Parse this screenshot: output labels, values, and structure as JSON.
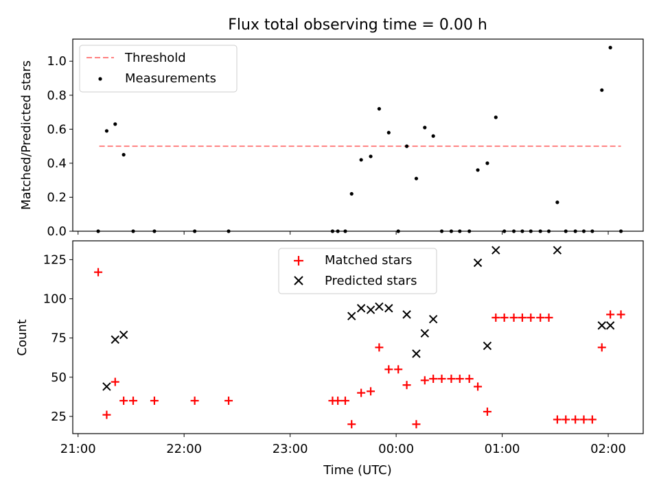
{
  "title": "Flux total observing time = 0.00 h",
  "colors": {
    "threshold": "#ff7f7f",
    "measurements": "#000000",
    "matched": "#ff0000",
    "predicted": "#000000"
  },
  "x_tick_labels": [
    "21:00",
    "22:00",
    "23:00",
    "00:00",
    "01:00",
    "02:00"
  ],
  "chart_data": [
    {
      "type": "scatter",
      "ylabel": "Matched/Predicted stars",
      "xlim_hours": [
        20.95,
        26.33
      ],
      "ylim": [
        0,
        1.13
      ],
      "y_ticks": [
        0.0,
        0.2,
        0.4,
        0.6,
        0.8,
        1.0
      ],
      "y_tick_labels": [
        "0.0",
        "0.2",
        "0.4",
        "0.6",
        "0.8",
        "1.0"
      ],
      "legend": {
        "position": "upper-left",
        "entries": [
          "Threshold",
          "Measurements"
        ]
      },
      "threshold": {
        "name": "Threshold",
        "y": 0.5,
        "x": [
          21.2,
          26.12
        ]
      },
      "series": [
        {
          "name": "Measurements",
          "marker": "dot",
          "x": [
            21.19,
            21.27,
            21.35,
            21.43,
            21.52,
            21.72,
            22.1,
            22.42,
            23.4,
            23.45,
            23.52,
            23.58,
            23.67,
            23.76,
            23.84,
            23.93,
            24.02,
            24.1,
            24.19,
            24.27,
            24.35,
            24.43,
            24.52,
            24.6,
            24.69,
            24.77,
            24.86,
            24.94,
            25.02,
            25.11,
            25.19,
            25.27,
            25.36,
            25.44,
            25.52,
            25.6,
            25.69,
            25.77,
            25.85,
            25.94,
            26.02,
            26.12
          ],
          "y": [
            0.0,
            0.59,
            0.63,
            0.45,
            0.0,
            0.0,
            0.0,
            0.0,
            0.0,
            0.0,
            0.0,
            0.22,
            0.42,
            0.44,
            0.72,
            0.58,
            0.0,
            0.5,
            0.31,
            0.61,
            0.56,
            0.0,
            0.0,
            0.0,
            0.0,
            0.36,
            0.4,
            0.67,
            0.0,
            0.0,
            0.0,
            0.0,
            0.0,
            0.0,
            0.17,
            0.0,
            0.0,
            0.0,
            0.0,
            0.83,
            1.08,
            0.0
          ]
        }
      ]
    },
    {
      "type": "scatter",
      "ylabel": "Count",
      "xlabel": "Time (UTC)",
      "xlim_hours": [
        20.95,
        26.33
      ],
      "ylim": [
        14,
        137
      ],
      "y_ticks": [
        25,
        50,
        75,
        100,
        125
      ],
      "y_tick_labels": [
        "25",
        "50",
        "75",
        "100",
        "125"
      ],
      "legend": {
        "position": "upper-center",
        "entries": [
          "Matched stars",
          "Predicted stars"
        ]
      },
      "series": [
        {
          "name": "Matched stars",
          "marker": "plus",
          "x": [
            21.19,
            21.27,
            21.35,
            21.43,
            21.52,
            21.72,
            22.1,
            22.42,
            23.4,
            23.45,
            23.52,
            23.58,
            23.67,
            23.76,
            23.84,
            23.93,
            24.02,
            24.1,
            24.19,
            24.27,
            24.35,
            24.43,
            24.52,
            24.6,
            24.69,
            24.77,
            24.86,
            24.94,
            25.02,
            25.11,
            25.19,
            25.27,
            25.36,
            25.44,
            25.52,
            25.6,
            25.69,
            25.77,
            25.85,
            25.94,
            26.02,
            26.12
          ],
          "y": [
            117,
            26,
            47,
            35,
            35,
            35,
            35,
            35,
            35,
            35,
            35,
            20,
            40,
            41,
            69,
            55,
            55,
            45,
            20,
            48,
            49,
            49,
            49,
            49,
            49,
            44,
            28,
            88,
            88,
            88,
            88,
            88,
            88,
            88,
            23,
            23,
            23,
            23,
            23,
            69,
            90,
            90
          ]
        },
        {
          "name": "Predicted stars",
          "marker": "x",
          "x": [
            21.27,
            21.35,
            21.43,
            23.58,
            23.67,
            23.76,
            23.84,
            23.93,
            24.1,
            24.19,
            24.27,
            24.35,
            24.77,
            24.86,
            24.94,
            25.52,
            25.94,
            26.02
          ],
          "y": [
            44,
            74,
            77,
            89,
            94,
            93,
            95,
            94,
            90,
            65,
            78,
            87,
            123,
            70,
            131,
            131,
            83,
            83
          ]
        }
      ]
    }
  ]
}
